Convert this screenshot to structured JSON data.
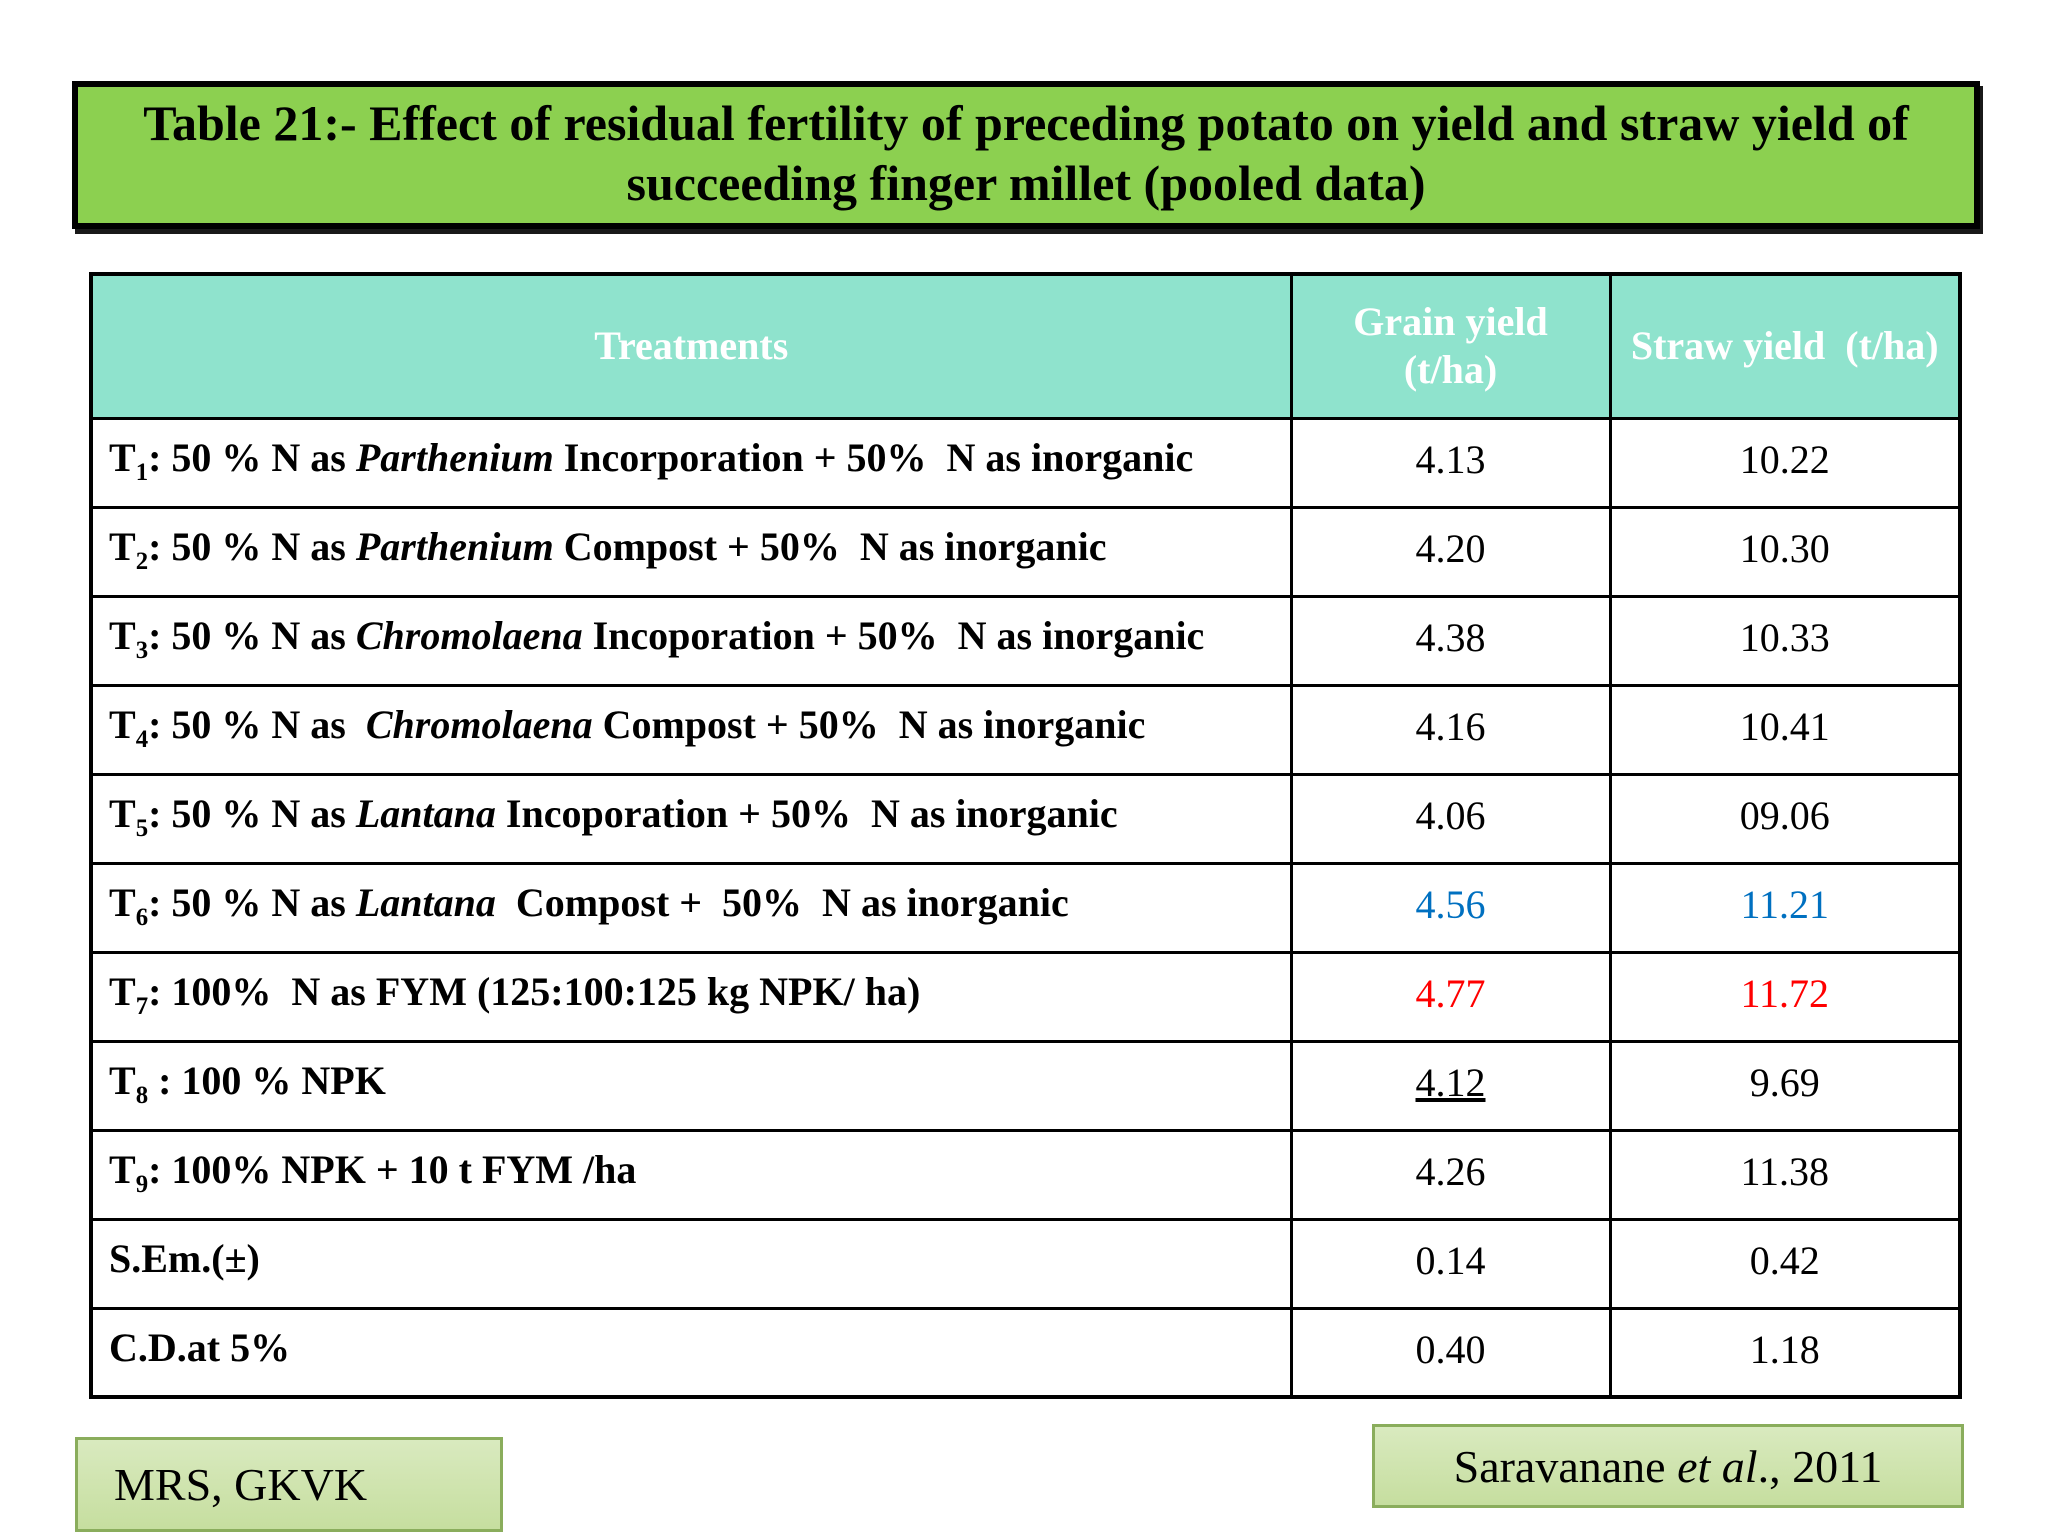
{
  "title": "Table 21:- Effect of residual fertility of preceding potato on yield and straw yield of succeeding finger millet (pooled data)",
  "colors": {
    "title_bg": "#8CD050",
    "header_bg": "#8FE3CD",
    "highlight_blue": "#0070C0",
    "highlight_red": "#FF0000",
    "footer_bg": "#C6DE9F",
    "footer_border": "#8AAD5C"
  },
  "table": {
    "headers": [
      "Treatments",
      "Grain yield\n(t/ha)",
      "Straw yield  (t/ha)"
    ],
    "rows": [
      {
        "label": [
          {
            "t": "T"
          },
          {
            "sub": "1"
          },
          {
            "t": ": 50 % N as "
          },
          {
            "i": "Parthenium"
          },
          {
            "t": " Incorporation + 50%  N as inorganic"
          }
        ],
        "grain": {
          "text": "4.13"
        },
        "straw": {
          "text": "10.22"
        }
      },
      {
        "label": [
          {
            "t": "T"
          },
          {
            "sub": "2"
          },
          {
            "t": ": 50 % N as "
          },
          {
            "i": "Parthenium"
          },
          {
            "t": " Compost + 50%  N as inorganic"
          }
        ],
        "grain": {
          "text": "4.20"
        },
        "straw": {
          "text": "10.30"
        }
      },
      {
        "label": [
          {
            "t": "T"
          },
          {
            "sub": "3"
          },
          {
            "t": ": 50 % N as "
          },
          {
            "i": "Chromolaena"
          },
          {
            "t": " Incoporation + 50%  N as inorganic"
          }
        ],
        "grain": {
          "text": "4.38"
        },
        "straw": {
          "text": "10.33"
        }
      },
      {
        "label": [
          {
            "t": "T"
          },
          {
            "sub": "4"
          },
          {
            "t": ": 50 % N as  "
          },
          {
            "i": "Chromolaena"
          },
          {
            "t": " Compost + 50%  N as inorganic"
          }
        ],
        "grain": {
          "text": "4.16"
        },
        "straw": {
          "text": "10.41"
        }
      },
      {
        "label": [
          {
            "t": "T"
          },
          {
            "sub": "5"
          },
          {
            "t": ": 50 % N as "
          },
          {
            "i": "Lantana"
          },
          {
            "t": " Incoporation + 50%  N as inorganic"
          }
        ],
        "grain": {
          "text": "4.06"
        },
        "straw": {
          "text": "09.06"
        }
      },
      {
        "label": [
          {
            "t": "T"
          },
          {
            "sub": "6"
          },
          {
            "t": ": 50 % N as "
          },
          {
            "i": "Lantana"
          },
          {
            "t": "  Compost +  50%  N as inorganic"
          }
        ],
        "grain": {
          "text": "4.56",
          "color": "blue"
        },
        "straw": {
          "text": "11.21",
          "color": "blue"
        }
      },
      {
        "label": [
          {
            "t": "T"
          },
          {
            "sub": "7"
          },
          {
            "t": ": 100%  N as FYM (125:100:125 kg NPK/ ha)"
          }
        ],
        "grain": {
          "text": "4.77",
          "color": "red"
        },
        "straw": {
          "text": "11.72",
          "color": "red"
        }
      },
      {
        "label": [
          {
            "t": "T"
          },
          {
            "sub": "8"
          },
          {
            "t": " : 100 % NPK"
          }
        ],
        "grain": {
          "text": "4.12",
          "underline": true
        },
        "straw": {
          "text": "9.69"
        }
      },
      {
        "label": [
          {
            "t": "T"
          },
          {
            "sub": "9"
          },
          {
            "t": ": 100% NPK + 10 t FYM /ha"
          }
        ],
        "grain": {
          "text": "4.26"
        },
        "straw": {
          "text": "11.38"
        }
      },
      {
        "label": [
          {
            "t": "S.Em.(±)"
          }
        ],
        "grain": {
          "text": "0.14"
        },
        "straw": {
          "text": "0.42"
        }
      },
      {
        "label": [
          {
            "t": "C.D.at 5%"
          }
        ],
        "grain": {
          "text": "0.40"
        },
        "straw": {
          "text": "1.18"
        }
      }
    ]
  },
  "footer": {
    "location": "MRS, GKVK",
    "citation": [
      {
        "t": "Saravanane "
      },
      {
        "i": "et al"
      },
      {
        "t": "., 2011"
      }
    ]
  }
}
